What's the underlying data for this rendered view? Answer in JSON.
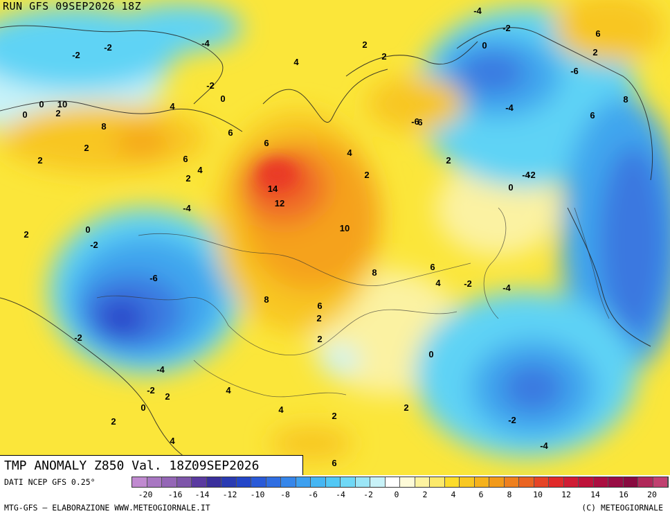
{
  "header": {
    "run_title": "RUN GFS 09SEP2026 18Z"
  },
  "map": {
    "title": "TMP ANOMALY Z850 Val. 18Z09SEP2026",
    "contour_labels": [
      "-4",
      "-2",
      "6",
      "-2",
      "-4",
      "-2",
      "2",
      "0",
      "2",
      "4",
      "2",
      "-6",
      "-2",
      "0",
      "6",
      "4",
      "0",
      "2",
      "8",
      "6",
      "2",
      "4",
      "6",
      "-4",
      "8",
      "0",
      "10",
      "-6",
      "2",
      "-4",
      "6",
      "6",
      "4",
      "2",
      "2",
      "14",
      "-2",
      "0",
      "12",
      "-4",
      "10",
      "-2",
      "0",
      "2",
      "-6",
      "6",
      "-4",
      "8",
      "2",
      "8",
      "-2",
      "6",
      "4",
      "2",
      "0",
      "-2",
      "-4",
      "4",
      "2",
      "0",
      "2",
      "4",
      "2",
      "2",
      "-2",
      "-2",
      "2",
      "4",
      "6",
      "-4"
    ],
    "colors": {
      "neg20": "#b48ec8",
      "neg10": "#2a45c9",
      "neg6": "#3a78e0",
      "neg4": "#3fa6ee",
      "neg2": "#5ed3f5",
      "zero": "#c8f3f9",
      "pos2": "#fbf2a2",
      "pos4": "#fbe63a",
      "pos6": "#f8c624",
      "pos8": "#f5a21e",
      "pos10": "#f07028",
      "pos12": "#ea3a28",
      "pos20": "#a0103a"
    }
  },
  "legend": {
    "source": "DATI NCEP GFS 0.25°",
    "ticks": [
      "-20",
      "-18",
      "-16",
      "-14",
      "-12",
      "-10",
      "-8",
      "-6",
      "-4",
      "-2",
      "0",
      "2",
      "4",
      "6",
      "8",
      "10",
      "12",
      "14",
      "16",
      "18",
      "20"
    ],
    "tick_labels": [
      "-20",
      "-16",
      "-14",
      "-12",
      "-10",
      "-8",
      "-6",
      "-4",
      "-2",
      "0",
      "2",
      "4",
      "6",
      "8",
      "10",
      "12",
      "14",
      "16",
      "20"
    ],
    "swatch_colors": [
      "#c08ad0",
      "#a877c2",
      "#9466b6",
      "#7e56aa",
      "#5a3aa0",
      "#3a2f9c",
      "#2a3bb2",
      "#2346c8",
      "#2a5ad8",
      "#306ee2",
      "#3686ea",
      "#3da0f0",
      "#45b6f3",
      "#52c8f5",
      "#6fd8f6",
      "#9be6f7",
      "#c8f2f8",
      "#ffffff",
      "#fefbd8",
      "#fdf3a0",
      "#fce96a",
      "#fcdc2a",
      "#f8c822",
      "#f5b21c",
      "#f29a1a",
      "#ee801e",
      "#ea6422",
      "#e64426",
      "#e02a2a",
      "#d01c34",
      "#be123a",
      "#ab0e40",
      "#980c44",
      "#880a40",
      "#b0285a",
      "#c04070"
    ]
  },
  "footer": {
    "credit_left": "MTG-GFS — ELABORAZIONE WWW.METEOGIORNALE.IT",
    "credit_right": "(C) METEOGIORNALE"
  }
}
